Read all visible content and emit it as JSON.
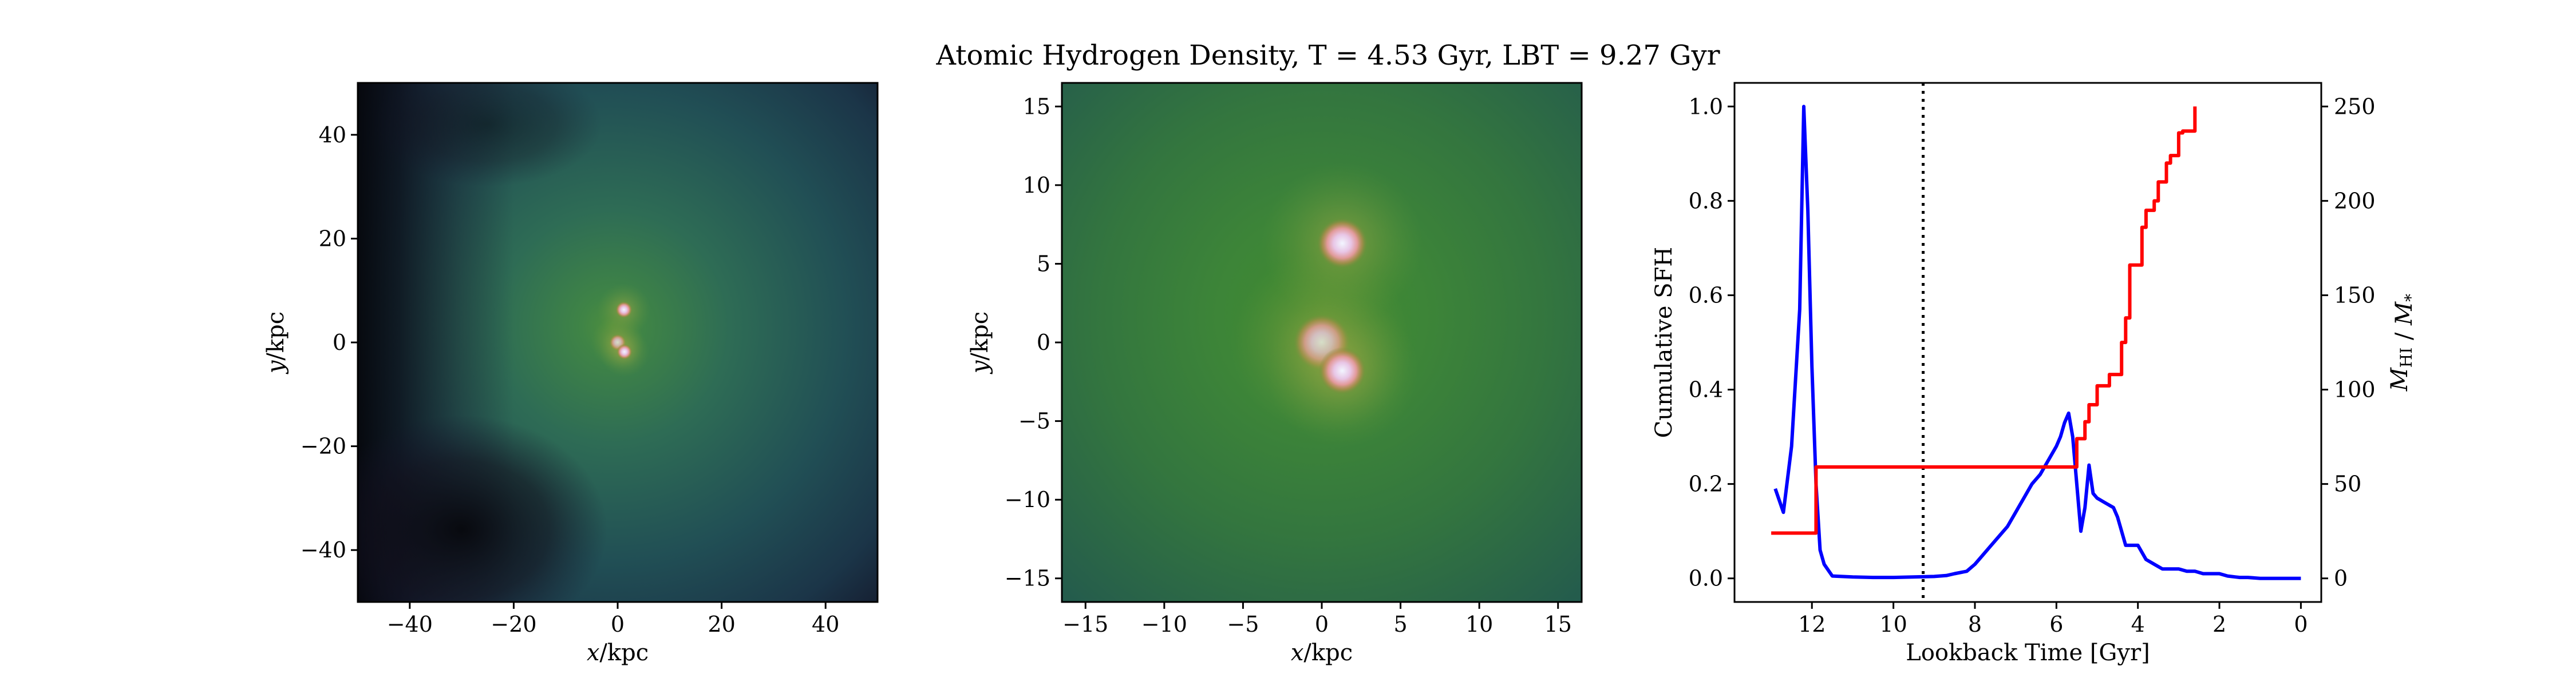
{
  "figure": {
    "title": "Atomic Hydrogen Density, T = 4.53 Gyr, LBT = 9.27 Gyr"
  },
  "chart_data": [
    {
      "type": "heatmap",
      "name": "wide-view",
      "xlabel": "x/kpc",
      "ylabel": "y/kpc",
      "xlim": [
        -50,
        50
      ],
      "ylim": [
        -50,
        50
      ],
      "xticks": [
        -40,
        -20,
        0,
        20,
        40
      ],
      "yticks": [
        -40,
        -20,
        0,
        20,
        40
      ],
      "xtick_labels": [
        "−40",
        "−20",
        "0",
        "20",
        "40"
      ],
      "ytick_labels": [
        "−40",
        "−20",
        "0",
        "20",
        "40"
      ],
      "sources": [
        {
          "x": 1.2,
          "y": 6.3,
          "r": 1.6
        },
        {
          "x": 0.0,
          "y": 0.0,
          "r": 1.6
        },
        {
          "x": 1.3,
          "y": -1.8,
          "r": 1.5
        }
      ]
    },
    {
      "type": "heatmap",
      "name": "zoom-view",
      "xlabel": "x/kpc",
      "ylabel": "y/kpc",
      "xlim": [
        -16.5,
        16.5
      ],
      "ylim": [
        -16.5,
        16.5
      ],
      "xticks": [
        -15,
        -10,
        -5,
        0,
        5,
        10,
        15
      ],
      "yticks": [
        -15,
        -10,
        -5,
        0,
        5,
        10,
        15
      ],
      "xtick_labels": [
        "−15",
        "−10",
        "−5",
        "0",
        "5",
        "10",
        "15"
      ],
      "ytick_labels": [
        "−15",
        "−10",
        "−5",
        "0",
        "5",
        "10",
        "15"
      ],
      "sources": [
        {
          "x": 1.3,
          "y": 6.3,
          "r": 1.6
        },
        {
          "x": 0.0,
          "y": 0.0,
          "r": 1.8
        },
        {
          "x": 1.3,
          "y": -1.8,
          "r": 1.5
        }
      ]
    },
    {
      "type": "line",
      "name": "sfh-vs-lookback",
      "xlabel": "Lookback Time [Gyr]",
      "ylabel": "Cumulative SFH",
      "y2label": "M_HI / M_*",
      "xlim": [
        13.9,
        -0.5
      ],
      "ylim": [
        -0.05,
        1.05
      ],
      "y2lim": [
        -12.5,
        262.5
      ],
      "xticks": [
        12,
        10,
        8,
        6,
        4,
        2,
        0
      ],
      "xtick_labels": [
        "12",
        "10",
        "8",
        "6",
        "4",
        "2",
        "0"
      ],
      "yticks": [
        0.0,
        0.2,
        0.4,
        0.6,
        0.8,
        1.0
      ],
      "ytick_labels": [
        "0.0",
        "0.2",
        "0.4",
        "0.6",
        "0.8",
        "1.0"
      ],
      "y2ticks": [
        0,
        50,
        100,
        150,
        200,
        250
      ],
      "y2tick_labels": [
        "0",
        "50",
        "100",
        "150",
        "200",
        "250"
      ],
      "vline": {
        "x": 9.27,
        "style": "dotted",
        "color": "#000000"
      },
      "series": [
        {
          "color": "#0000ff",
          "axis": "left",
          "x": [
            12.9,
            12.7,
            12.5,
            12.3,
            12.2,
            12.1,
            12.0,
            11.9,
            11.8,
            11.7,
            11.5,
            11.0,
            10.5,
            10.0,
            9.5,
            9.0,
            8.7,
            8.5,
            8.2,
            8.0,
            7.8,
            7.6,
            7.4,
            7.2,
            7.0,
            6.8,
            6.6,
            6.4,
            6.2,
            6.0,
            5.9,
            5.8,
            5.7,
            5.6,
            5.5,
            5.4,
            5.3,
            5.2,
            5.1,
            5.0,
            4.8,
            4.6,
            4.5,
            4.3,
            4.0,
            3.8,
            3.6,
            3.4,
            3.2,
            3.0,
            2.8,
            2.6,
            2.4,
            2.2,
            2.0,
            1.8,
            1.6,
            1.5,
            1.3,
            1.0,
            0.6,
            0.3,
            0.0
          ],
          "values": [
            0.19,
            0.14,
            0.28,
            0.57,
            1.0,
            0.78,
            0.45,
            0.2,
            0.06,
            0.03,
            0.005,
            0.003,
            0.002,
            0.002,
            0.003,
            0.004,
            0.006,
            0.01,
            0.015,
            0.03,
            0.05,
            0.07,
            0.09,
            0.11,
            0.14,
            0.17,
            0.2,
            0.22,
            0.25,
            0.28,
            0.3,
            0.33,
            0.35,
            0.3,
            0.2,
            0.1,
            0.15,
            0.24,
            0.18,
            0.17,
            0.16,
            0.15,
            0.13,
            0.07,
            0.07,
            0.04,
            0.03,
            0.02,
            0.02,
            0.02,
            0.015,
            0.015,
            0.01,
            0.01,
            0.01,
            0.005,
            0.003,
            0.002,
            0.002,
            0.0,
            0.0,
            0.0,
            0.0
          ]
        },
        {
          "color": "#ff0000",
          "axis": "right",
          "step": true,
          "x": [
            13.0,
            12.4,
            12.4,
            12.2,
            12.0,
            11.9,
            11.0,
            10.0,
            9.0,
            8.0,
            7.0,
            6.0,
            5.7,
            5.5,
            5.3,
            5.2,
            5.0,
            4.8,
            4.7,
            4.5,
            4.4,
            4.3,
            4.2,
            4.0,
            3.9,
            3.8,
            3.6,
            3.5,
            3.3,
            3.2,
            3.0,
            2.9,
            2.6
          ],
          "values": [
            24,
            24,
            24,
            24,
            24,
            59,
            59,
            59,
            59,
            59,
            59,
            59,
            59,
            74,
            83,
            92,
            102,
            102,
            108,
            108,
            125,
            138,
            166,
            166,
            186,
            195,
            200,
            210,
            220,
            224,
            236,
            237,
            250
          ]
        }
      ]
    }
  ]
}
